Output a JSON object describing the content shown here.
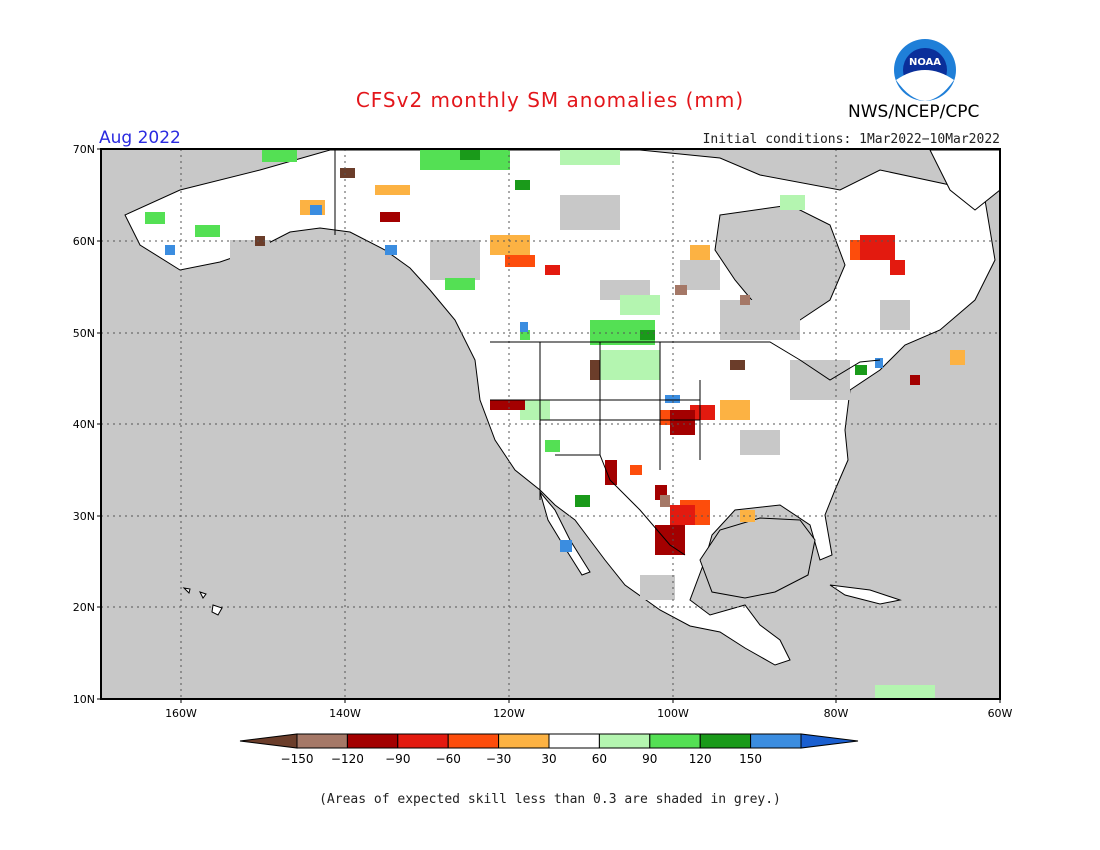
{
  "header": {
    "title": "CFSv2 monthly SM anomalies (mm)",
    "org": "NWS/NCEP/CPC",
    "month": "Aug 2022",
    "initial_conditions": "Initial conditions: 1Mar2022−10Mar2022",
    "logo_text": "NOAA"
  },
  "map": {
    "lat_labels": [
      "70N",
      "60N",
      "50N",
      "40N",
      "30N",
      "20N",
      "10N"
    ],
    "lon_labels": [
      "160W",
      "140W",
      "120W",
      "100W",
      "80W",
      "60W"
    ],
    "colors": {
      "ocean_grey": "#c8c8c8",
      "land_white": "#ffffff",
      "border": "#000000"
    }
  },
  "colorbar": {
    "labels": [
      "−150",
      "−120",
      "−90",
      "−60",
      "−30",
      "30",
      "60",
      "90",
      "120",
      "150"
    ],
    "colors": [
      "#6b3d2a",
      "#a57867",
      "#a30000",
      "#e31a0f",
      "#fd4d0c",
      "#fcb243",
      "#ffffff",
      "#b4f5b0",
      "#54e054",
      "#1a9a1a",
      "#3b8de0",
      "#1a5fd0"
    ]
  },
  "footer": {
    "note": "(Areas of expected skill less than 0.3 are shaded in grey.)"
  }
}
